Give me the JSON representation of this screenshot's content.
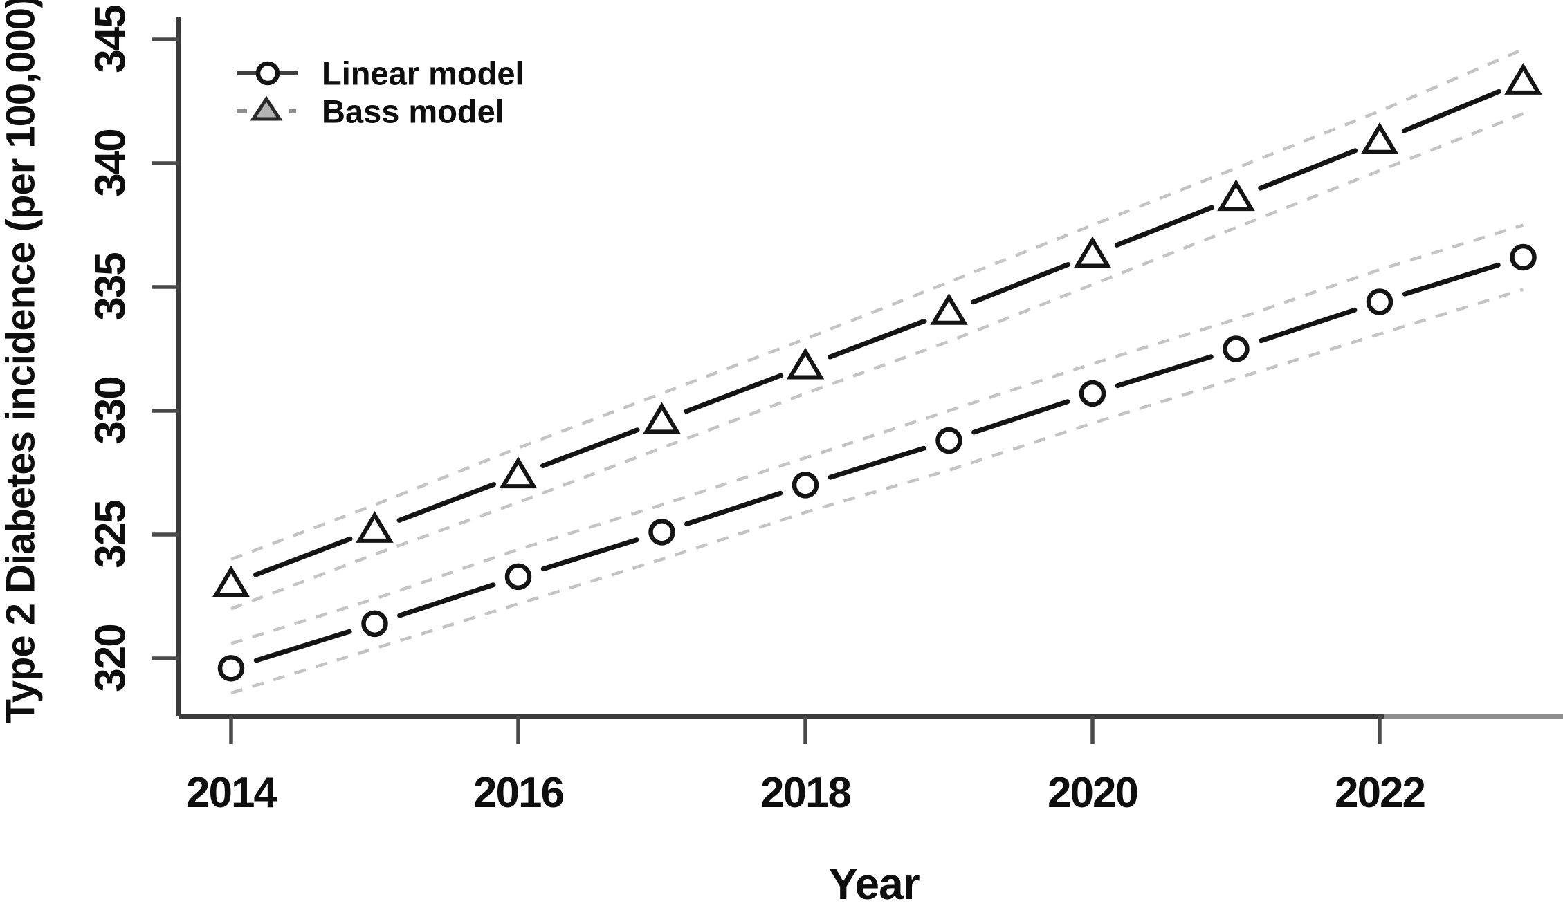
{
  "figure": {
    "background": "#ffffff",
    "description": "Line chart comparing projected Type 2 Diabetes incidence from a Linear model and a Bass model, 2014-2023, with dashed confidence bands"
  },
  "colors": {
    "axis": "#3a3a3a",
    "text": "#0e0e0e",
    "band": "#c4c4c4",
    "series": "#141414",
    "background": "#ffffff"
  },
  "chart_data": {
    "type": "line",
    "title": "",
    "xlabel": "Year",
    "ylabel": "Type 2 Diabetes incidence (per 100,000)",
    "grid": false,
    "legend_position": "top-left-inside",
    "xlim": [
      2013.6,
      2023.3
    ],
    "ylim": [
      317.7,
      346.6
    ],
    "x": [
      2014,
      2015,
      2016,
      2017,
      2018,
      2019,
      2020,
      2021,
      2022,
      2023
    ],
    "x_ticks": [
      "2014",
      "2016",
      "2018",
      "2020",
      "2022"
    ],
    "x_tick_values": [
      2014,
      2016,
      2018,
      2020,
      2022
    ],
    "y_ticks": [
      "320",
      "325",
      "330",
      "335",
      "340",
      "345"
    ],
    "y_tick_values": [
      320,
      325,
      330,
      335,
      340,
      345
    ],
    "series": [
      {
        "name": "Linear model",
        "marker": "circle",
        "line_style": "solid",
        "ci_style": "dashed",
        "values": [
          319.6,
          321.4,
          323.3,
          325.1,
          327.0,
          328.8,
          330.7,
          332.5,
          334.4,
          336.2
        ],
        "ci_upper": [
          320.6,
          322.4,
          324.4,
          326.2,
          328.1,
          330.0,
          331.9,
          333.7,
          335.7,
          337.5
        ],
        "ci_lower": [
          318.6,
          320.4,
          322.2,
          324.0,
          325.9,
          327.6,
          329.5,
          331.3,
          333.1,
          334.9
        ]
      },
      {
        "name": "Bass model",
        "marker": "triangle",
        "line_style": "solid",
        "ci_style": "dashed",
        "values": [
          323.0,
          325.2,
          327.4,
          329.6,
          331.8,
          334.0,
          336.3,
          338.6,
          340.9,
          343.3
        ],
        "ci_upper": [
          324.0,
          326.2,
          328.5,
          330.7,
          332.9,
          335.2,
          337.5,
          339.8,
          342.1,
          344.6
        ],
        "ci_lower": [
          322.0,
          324.2,
          326.3,
          328.5,
          330.7,
          332.8,
          335.1,
          337.4,
          339.7,
          342.0
        ]
      }
    ]
  }
}
